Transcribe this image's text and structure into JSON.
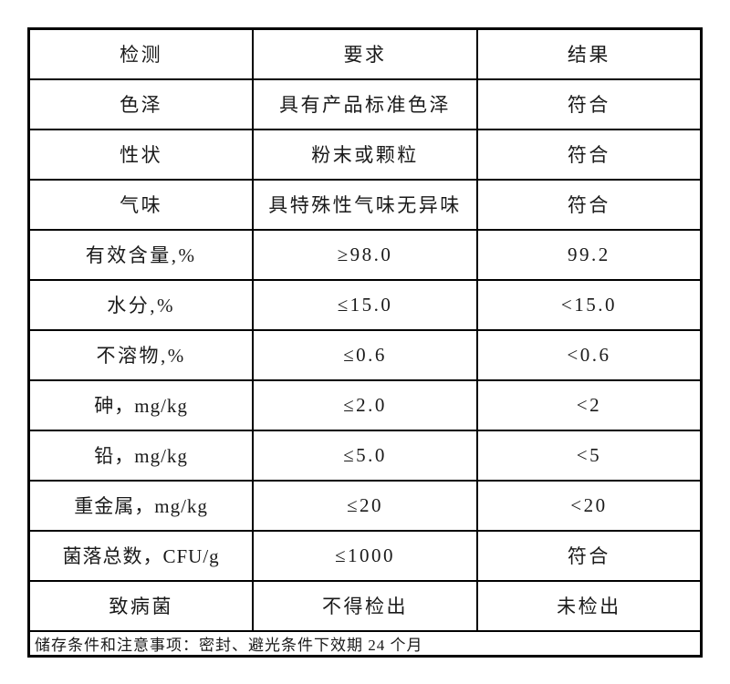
{
  "page": {
    "background_color": "#ffffff",
    "border_color": "#000000",
    "text_color": "#1a1a1a"
  },
  "table": {
    "columns": [
      {
        "label": "检测"
      },
      {
        "label": "要求"
      },
      {
        "label": "结果"
      }
    ],
    "rows": [
      {
        "test": "色泽",
        "requirement": "具有产品标准色泽",
        "result": "符合"
      },
      {
        "test": "性状",
        "requirement": "粉末或颗粒",
        "result": "符合"
      },
      {
        "test": "气味",
        "requirement": "具特殊性气味无异味",
        "result": "符合"
      },
      {
        "test": "有效含量,%",
        "requirement": "≥98.0",
        "result": "99.2"
      },
      {
        "test": "水分,%",
        "requirement": "≤15.0",
        "result": "<15.0"
      },
      {
        "test": "不溶物,%",
        "requirement": "≤0.6",
        "result": "<0.6"
      },
      {
        "test": "砷，mg/kg",
        "requirement": "≤2.0",
        "result": "<2"
      },
      {
        "test": "铅，mg/kg",
        "requirement": "≤5.0",
        "result": "<5"
      },
      {
        "test": "重金属，mg/kg",
        "requirement": "≤20",
        "result": "<20"
      },
      {
        "test": "菌落总数，CFU/g",
        "requirement": "≤1000",
        "result": "符合"
      },
      {
        "test": "致病菌",
        "requirement": "不得检出",
        "result": "未检出"
      }
    ],
    "footer_note": "储存条件和注意事项：密封、避光条件下效期 24 个月"
  }
}
